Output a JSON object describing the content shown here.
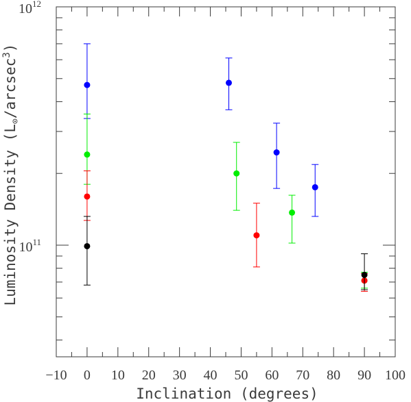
{
  "chart_data": {
    "type": "scatter",
    "title": "",
    "xlabel": "Inclination (degrees)",
    "ylabel": "Luminosity Density (L⊙/arcsec³)",
    "ylabel_parts": {
      "prefix": "Luminosity Density (L",
      "sun_symbol": "⊙",
      "middle": "/arcsec",
      "superscript": "3",
      "suffix": ")"
    },
    "x_scale": "linear",
    "y_scale": "log",
    "xlim": [
      -10,
      100
    ],
    "ylim": [
      34000000000.0,
      1000000000000.0
    ],
    "x_ticks": [
      -10,
      0,
      10,
      20,
      30,
      40,
      50,
      60,
      70,
      80,
      90,
      100
    ],
    "x_tick_labels": [
      "−10",
      "0",
      "10",
      "20",
      "30",
      "40",
      "50",
      "60",
      "70",
      "80",
      "90",
      "100"
    ],
    "y_tick_labels": [
      {
        "value": 100000000000.0,
        "base": "10",
        "exp": "11"
      },
      {
        "value": 1000000000000.0,
        "base": "10",
        "exp": "12"
      }
    ],
    "grid": false,
    "legend": "none",
    "series": [
      {
        "color": "#0000ff",
        "points": [
          {
            "x": 0,
            "y": 470000000000.0,
            "ylow": 340000000000.0,
            "yhigh": 700000000000.0
          },
          {
            "x": 46,
            "y": 480000000000.0,
            "ylow": 370000000000.0,
            "yhigh": 610000000000.0
          },
          {
            "x": 61.5,
            "y": 245000000000.0,
            "ylow": 173000000000.0,
            "yhigh": 325000000000.0
          },
          {
            "x": 74,
            "y": 175000000000.0,
            "ylow": 132000000000.0,
            "yhigh": 218000000000.0
          }
        ]
      },
      {
        "color": "#00ee00",
        "points": [
          {
            "x": 0,
            "y": 240000000000.0,
            "ylow": 180000000000.0,
            "yhigh": 355000000000.0
          },
          {
            "x": 48.5,
            "y": 200000000000.0,
            "ylow": 140000000000.0,
            "yhigh": 270000000000.0
          },
          {
            "x": 66.5,
            "y": 137000000000.0,
            "ylow": 102000000000.0,
            "yhigh": 162000000000.0
          },
          {
            "x": 90,
            "y": 71000000000.0,
            "ylow": 66000000000.0,
            "yhigh": 77000000000.0
          }
        ]
      },
      {
        "color": "#ff0000",
        "points": [
          {
            "x": 0,
            "y": 160000000000.0,
            "ylow": 127000000000.0,
            "yhigh": 205000000000.0
          },
          {
            "x": 55,
            "y": 110000000000.0,
            "ylow": 81000000000.0,
            "yhigh": 150000000000.0
          },
          {
            "x": 90,
            "y": 71000000000.0,
            "ylow": 64000000000.0,
            "yhigh": 76000000000.0
          }
        ]
      },
      {
        "color": "#000000",
        "points": [
          {
            "x": 0,
            "y": 99000000000.0,
            "ylow": 68000000000.0,
            "yhigh": 132000000000.0
          },
          {
            "x": 90,
            "y": 75000000000.0,
            "ylow": 65000000000.0,
            "yhigh": 92000000000.0
          }
        ]
      }
    ]
  }
}
